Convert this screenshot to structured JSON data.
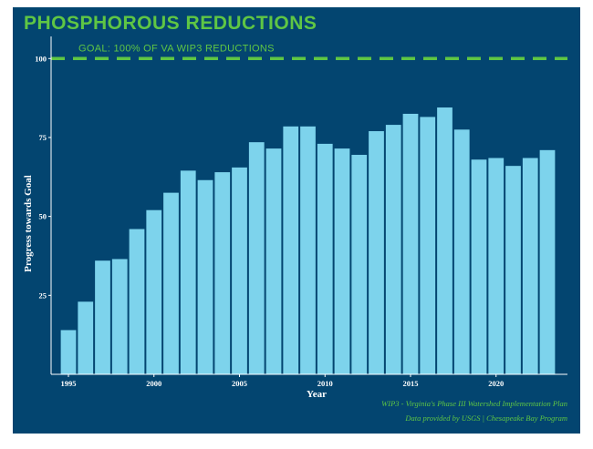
{
  "chart_data": {
    "type": "bar",
    "title": "PHOSPHOROUS REDUCTIONS",
    "xlabel": "Year",
    "ylabel": "Progress towards Goal",
    "x": [
      1995,
      1996,
      1997,
      1998,
      1999,
      2000,
      2001,
      2002,
      2003,
      2004,
      2005,
      2006,
      2007,
      2008,
      2009,
      2010,
      2011,
      2012,
      2013,
      2014,
      2015,
      2016,
      2017,
      2018,
      2019,
      2020,
      2021,
      2022,
      2023
    ],
    "values": [
      14,
      23,
      36,
      36.5,
      46,
      52,
      57.5,
      64.5,
      61.5,
      64,
      65.5,
      73.5,
      71.5,
      78.5,
      78.5,
      73,
      71.5,
      69.5,
      77,
      79,
      82.5,
      81.5,
      84.5,
      77.5,
      68,
      68.5,
      66,
      68.5,
      71
    ],
    "ylim": [
      0,
      100
    ],
    "yticks": [
      25,
      50,
      75,
      100
    ],
    "xticks": [
      1995,
      2000,
      2005,
      2010,
      2015,
      2020
    ],
    "xtick_labels": [
      "1995",
      "2000",
      "2005",
      "2010",
      "2015",
      "2020"
    ],
    "ytick_labels": [
      "25",
      "50",
      "75",
      "100"
    ],
    "goal": {
      "value": 100,
      "label": "GOAL: 100% OF VA WIP3 REDUCTIONS"
    },
    "bar_color": "#7dd3ec",
    "goal_color": "#5fc644",
    "background": "#034570",
    "notes": [
      "WIP3 - Virginia's Phase III Watershed Implementation Plan",
      "Data provided by USGS | Chesapeake Bay Program"
    ]
  }
}
